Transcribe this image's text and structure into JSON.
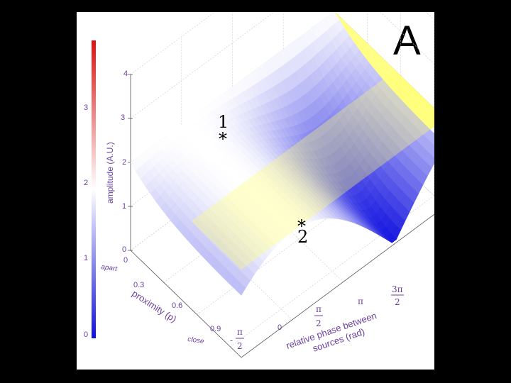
{
  "panel_label": "A",
  "colorbar": {
    "ticks": [
      "0",
      "1",
      "2",
      "3"
    ],
    "top_color": "#e01010",
    "mid_color": "#ffffff",
    "bottom_color": "#1010e0"
  },
  "chart_data": {
    "type": "surface3d",
    "title": "",
    "zlabel": "amplitude (A.U.)",
    "z_ticks": [
      "0",
      "1",
      "2",
      "3",
      "4"
    ],
    "zlim": [
      0,
      4
    ],
    "proximity_axis": {
      "label": "proximity (p)",
      "ticks": [
        "0",
        "0.3",
        "0.6",
        "0.9"
      ],
      "end_labels": [
        "apart",
        "close"
      ],
      "range": [
        0,
        1
      ]
    },
    "phase_axis": {
      "label_line1": "relative phase between",
      "label_line2": "sources (rad)",
      "tick_fractions": [
        {
          "sign": "-",
          "num": "π",
          "den": "2"
        },
        {
          "sign": "",
          "num": "π",
          "den": "2"
        },
        {
          "sign": "",
          "num": "3π",
          "den": "2"
        }
      ],
      "plain_ticks": [
        "0",
        "π"
      ],
      "range_rad": [
        -1.5708,
        4.7124
      ]
    },
    "surface_model": "amplitude = 2 * sqrt(1 + p^2 + 2p*cos(phase)) / (1 + p)",
    "reference_plane": {
      "amplitude": 2,
      "color": "#ffff70"
    },
    "markers": [
      {
        "label": "1",
        "phase_rad": 0,
        "p": 0.9,
        "amplitude": 2.0
      },
      {
        "label": "2",
        "phase_rad": 3.1416,
        "p": 0.9,
        "amplitude": 0.11
      }
    ]
  }
}
